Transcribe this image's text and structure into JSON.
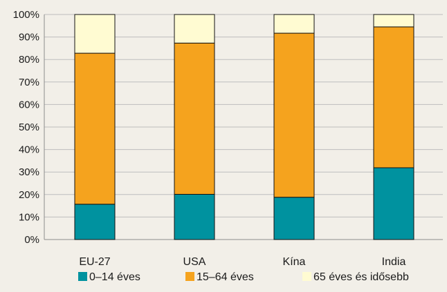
{
  "chart_data": {
    "type": "bar",
    "stacked": true,
    "percent": true,
    "categories": [
      "EU-27",
      "USA",
      "Kína",
      "India"
    ],
    "series": [
      {
        "name": "0–14 éves",
        "color": "#00929f",
        "values": [
          15.7,
          20.1,
          18.8,
          31.9
        ]
      },
      {
        "name": "15–64 éves",
        "color": "#f5a31e",
        "values": [
          67.1,
          67.2,
          72.9,
          62.6
        ]
      },
      {
        "name": "65 éves és idősebb",
        "color": "#fffbd2",
        "values": [
          17.2,
          12.7,
          8.3,
          5.5
        ]
      }
    ],
    "ylim": [
      0,
      100
    ],
    "yticks": [
      "0%",
      "10%",
      "20%",
      "30%",
      "40%",
      "50%",
      "60%",
      "70%",
      "80%",
      "90%",
      "100%"
    ],
    "grid": true,
    "legend_position": "bottom"
  }
}
